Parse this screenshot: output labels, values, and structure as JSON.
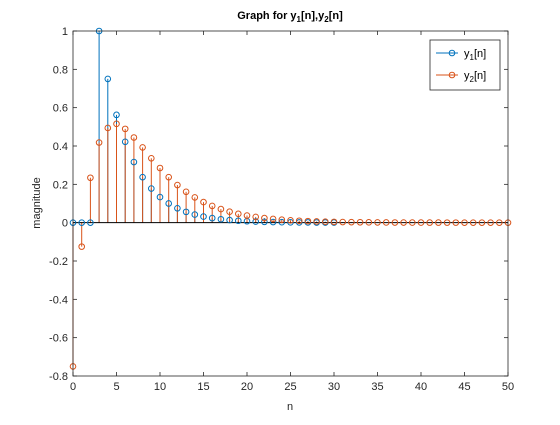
{
  "chart_data": {
    "type": "stem",
    "title": "Graph for y1[n],y2[n]",
    "title_parts": {
      "prefix": "Graph for y",
      "sub1": "1",
      "mid": "[n],y",
      "sub2": "2",
      "suffix": "[n]"
    },
    "xlabel": "n",
    "ylabel": "magnitude",
    "xlim": [
      0,
      50
    ],
    "ylim": [
      -0.8,
      1
    ],
    "xticks": [
      0,
      5,
      10,
      15,
      20,
      25,
      30,
      35,
      40,
      45,
      50
    ],
    "yticks": [
      -0.8,
      -0.6,
      -0.4,
      -0.2,
      0,
      0.2,
      0.4,
      0.6,
      0.8,
      1
    ],
    "ytick_labels": [
      "-0.8",
      "-0.6",
      "-0.4",
      "-0.2",
      "0",
      "0.2",
      "0.4",
      "0.6",
      "0.8",
      "1"
    ],
    "legend_position": "top-right",
    "series": [
      {
        "name": "y1[n]",
        "legend_base": "y",
        "legend_sub": "1",
        "legend_suffix": "[n]",
        "color": "#0072BD",
        "x": [
          0,
          1,
          2,
          3,
          4,
          5,
          6,
          7,
          8,
          9,
          10,
          11,
          12,
          13,
          14,
          15,
          16,
          17,
          18,
          19,
          20,
          21,
          22,
          23,
          24,
          25,
          26,
          27,
          28,
          29,
          30
        ],
        "values": [
          0,
          0,
          0,
          1,
          0.75,
          0.5625,
          0.4219,
          0.3164,
          0.2373,
          0.178,
          0.1335,
          0.1001,
          0.0751,
          0.0563,
          0.0422,
          0.0317,
          0.0238,
          0.0178,
          0.0134,
          0.01,
          0.0075,
          0.0056,
          0.0042,
          0.0032,
          0.0024,
          0.0018,
          0.0013,
          0.001,
          0.0008,
          0.0006,
          0.0004
        ]
      },
      {
        "name": "y2[n]",
        "legend_base": "y",
        "legend_sub": "2",
        "legend_suffix": "[n]",
        "color": "#D95319",
        "x": [
          0,
          1,
          2,
          3,
          4,
          5,
          6,
          7,
          8,
          9,
          10,
          11,
          12,
          13,
          14,
          15,
          16,
          17,
          18,
          19,
          20,
          21,
          22,
          23,
          24,
          25,
          26,
          27,
          28,
          29,
          30,
          31,
          32,
          33,
          34,
          35,
          36,
          37,
          38,
          39,
          40,
          41,
          42,
          43,
          44,
          45,
          46,
          47,
          48,
          49,
          50
        ],
        "values": [
          -0.75,
          -0.125,
          0.2344,
          0.418,
          0.4941,
          0.5156,
          0.4893,
          0.4443,
          0.3926,
          0.3359,
          0.2852,
          0.2373,
          0.1963,
          0.1611,
          0.1318,
          0.1074,
          0.0874,
          0.0708,
          0.0572,
          0.0461,
          0.0371,
          0.0299,
          0.024,
          0.0193,
          0.0155,
          0.0124,
          0.0099,
          0.008,
          0.0064,
          0.0051,
          0.0041,
          0.0032,
          0.0026,
          0.0021,
          0.0017,
          0.0013,
          0.0011,
          0.0008,
          0.0007,
          0.0005,
          0.0004,
          0.0003,
          0.0003,
          0.0002,
          0.0002,
          0.0001,
          0.0001,
          0.0001,
          0.0001,
          0.0001,
          0.0001
        ]
      }
    ]
  }
}
